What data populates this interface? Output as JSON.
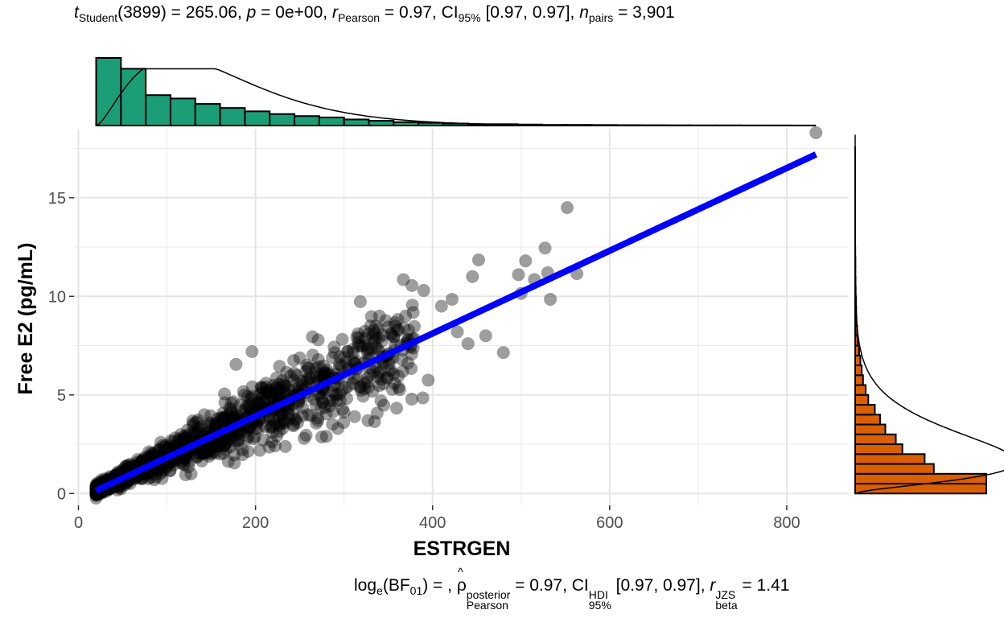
{
  "header": {
    "stat1_name": "t",
    "stat1_sub": "Student",
    "stat1_df": "(3899) = 265.06, ",
    "p_name": "p",
    "p_val": " = 0e+00, ",
    "r_name": "r",
    "r_sub": "Pearson",
    "r_val": " = 0.97, CI",
    "ci_sub": "95%",
    "ci_val": " [0.97, 0.97], ",
    "n_name": "n",
    "n_sub": "pairs",
    "n_val": " = 3,901"
  },
  "footer": {
    "bf_prefix": "log",
    "bf_sub_e": "e",
    "bf_mid": "(BF",
    "bf_sub": "01",
    "bf_val": ") = , ",
    "rho_sup": "posterior",
    "rho_sub": "Pearson",
    "rho_val": " = 0.97, CI",
    "hdi_sup": "HDI",
    "hdi_sub": "95%",
    "hdi_val": " [0.97, 0.97], ",
    "rb_name": "r",
    "rb_sup": "JZS",
    "rb_sub": "beta",
    "rb_val": " = 1.41"
  },
  "chart_data": {
    "type": "scatter",
    "title": "",
    "xlabel": "ESTRGEN",
    "ylabel": "Free E2 (pg/mL)",
    "xlim": [
      -5,
      870
    ],
    "ylim": [
      -0.6,
      18.5
    ],
    "x_ticks": [
      0,
      200,
      400,
      600,
      800
    ],
    "y_ticks": [
      0,
      5,
      10,
      15
    ],
    "grid": true,
    "n_points": 3901,
    "regression_line": {
      "x": [
        20,
        833
      ],
      "y": [
        0.15,
        17.2
      ],
      "color": "#0000ff"
    },
    "points_color": "#000000",
    "outlier_points": [
      {
        "x": 833,
        "y": 18.3
      },
      {
        "x": 552,
        "y": 14.5
      },
      {
        "x": 527,
        "y": 12.45
      },
      {
        "x": 505,
        "y": 11.8
      },
      {
        "x": 452,
        "y": 11.85
      },
      {
        "x": 367,
        "y": 10.85
      },
      {
        "x": 563,
        "y": 11.15
      },
      {
        "x": 533,
        "y": 9.85
      },
      {
        "x": 480,
        "y": 7.15
      },
      {
        "x": 395,
        "y": 5.75
      },
      {
        "x": 389,
        "y": 4.85
      },
      {
        "x": 327,
        "y": 3.7
      },
      {
        "x": 293,
        "y": 3.3
      },
      {
        "x": 255,
        "y": 2.8
      },
      {
        "x": 178,
        "y": 6.55
      },
      {
        "x": 196,
        "y": 7.2
      },
      {
        "x": 165,
        "y": 5.05
      },
      {
        "x": 440,
        "y": 7.6
      },
      {
        "x": 422,
        "y": 9.85
      },
      {
        "x": 445,
        "y": 11.0
      },
      {
        "x": 497,
        "y": 11.1
      },
      {
        "x": 515,
        "y": 10.85
      },
      {
        "x": 530,
        "y": 11.2
      },
      {
        "x": 500,
        "y": 10.15
      },
      {
        "x": 410,
        "y": 9.5
      },
      {
        "x": 390,
        "y": 10.3
      },
      {
        "x": 340,
        "y": 9.0
      },
      {
        "x": 358,
        "y": 8.5
      },
      {
        "x": 428,
        "y": 8.2
      },
      {
        "x": 460,
        "y": 8.0
      }
    ],
    "marginal_x_histogram": {
      "color": "#1b9e77",
      "bin_start": 20,
      "bin_width": 28,
      "counts": [
        100,
        84,
        45,
        40,
        32,
        26,
        21,
        17,
        14,
        12,
        9,
        7,
        5,
        4,
        3,
        2,
        2,
        1.5,
        1,
        1,
        0.8,
        0.6,
        0.5,
        0.4,
        0.3,
        0.3,
        0.2,
        0.2,
        0.1
      ]
    },
    "marginal_y_histogram": {
      "color": "#d95f02",
      "bin_start": 0,
      "bin_width": 0.5,
      "counts": [
        100,
        100,
        60,
        53,
        36,
        31,
        23,
        19,
        15,
        10,
        8,
        6,
        5,
        4,
        3,
        2,
        1.5,
        1,
        0.8,
        0.6,
        0.4,
        0.3,
        0.2,
        0.2,
        0.1
      ]
    }
  }
}
